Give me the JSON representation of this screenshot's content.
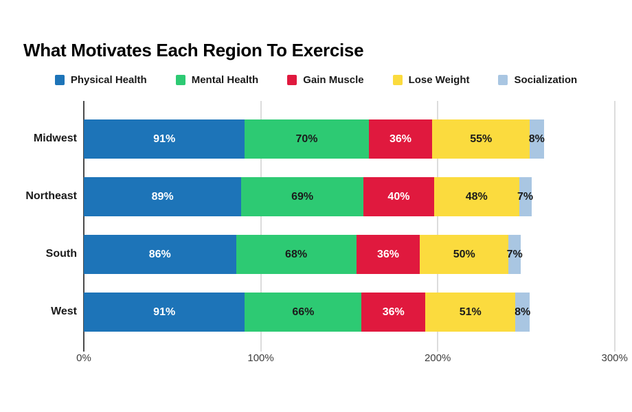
{
  "title": "What Motivates Each Region To Exercise",
  "colors": {
    "background": "#ffffff",
    "axis_line": "#4a4a4a",
    "gridline": "#dcdcdc",
    "title_text": "#000000",
    "label_text": "#1a1a1a",
    "tick_text": "#3d3d3d"
  },
  "chart_data": {
    "type": "bar",
    "stacked": true,
    "orientation": "horizontal",
    "title": "What Motivates Each Region To Exercise",
    "categories": [
      "Midwest",
      "Northeast",
      "South",
      "West"
    ],
    "series": [
      {
        "name": "Physical Health",
        "color": "#1d74b8",
        "label_color": "#ffffff",
        "values": [
          91,
          89,
          86,
          91
        ]
      },
      {
        "name": "Mental Health",
        "color": "#2dca73",
        "label_color": "#1b1b1b",
        "values": [
          70,
          69,
          68,
          66
        ]
      },
      {
        "name": "Gain Muscle",
        "color": "#e0193e",
        "label_color": "#ffffff",
        "values": [
          36,
          40,
          36,
          36
        ]
      },
      {
        "name": "Lose Weight",
        "color": "#fbdb3e",
        "label_color": "#1b1b1b",
        "values": [
          55,
          48,
          50,
          51
        ]
      },
      {
        "name": "Socialization",
        "color": "#a9c6e2",
        "label_color": "#1b1b1b",
        "values": [
          8,
          7,
          7,
          8
        ]
      }
    ],
    "value_suffix": "%",
    "x_ticks": [
      {
        "label": "0%",
        "value": 0
      },
      {
        "label": "100%",
        "value": 100
      },
      {
        "label": "200%",
        "value": 200
      },
      {
        "label": "300%",
        "value": 300
      }
    ],
    "xlim": [
      0,
      304
    ],
    "grid": true,
    "legend_position": "top",
    "xlabel": "",
    "ylabel": ""
  }
}
